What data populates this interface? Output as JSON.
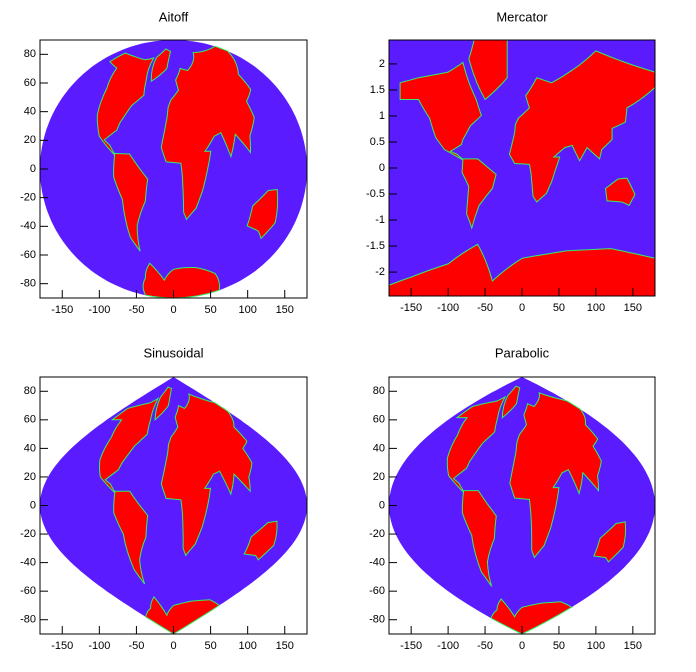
{
  "chart_data": [
    {
      "type": "map",
      "projection": "aitoff",
      "title": "Aitoff",
      "xlim": [
        -180,
        180
      ],
      "ylim": [
        -90,
        90
      ],
      "xticks": [
        -150,
        -100,
        -50,
        0,
        50,
        100,
        150
      ],
      "yticks": [
        -80,
        -60,
        -40,
        -20,
        0,
        20,
        40,
        60,
        80
      ],
      "color": "#5a1cff"
    },
    {
      "type": "map",
      "projection": "mercator",
      "title": "Mercator",
      "xlim": [
        -180,
        180
      ],
      "ylim": [
        -2.46,
        2.46
      ],
      "xticks": [
        -150,
        -100,
        -50,
        0,
        50,
        100,
        150
      ],
      "yticks": [
        -2,
        -1.5,
        -1,
        -0.5,
        0,
        0.5,
        1,
        1.5,
        2
      ],
      "color": "#5a1cff"
    },
    {
      "type": "map",
      "projection": "sinusoidal",
      "title": "Sinusoidal",
      "xlim": [
        -180,
        180
      ],
      "ylim": [
        -90,
        90
      ],
      "xticks": [
        -150,
        -100,
        -50,
        0,
        50,
        100,
        150
      ],
      "yticks": [
        -80,
        -60,
        -40,
        -20,
        0,
        20,
        40,
        60,
        80
      ],
      "color": "#5a1cff"
    },
    {
      "type": "map",
      "projection": "parabolic",
      "title": "Parabolic",
      "xlim": [
        -180,
        180
      ],
      "ylim": [
        -90,
        90
      ],
      "xticks": [
        -150,
        -100,
        -50,
        0,
        50,
        100,
        150
      ],
      "yticks": [
        -80,
        -60,
        -40,
        -20,
        0,
        20,
        40,
        60,
        80
      ],
      "color": "#5a1cff"
    }
  ]
}
